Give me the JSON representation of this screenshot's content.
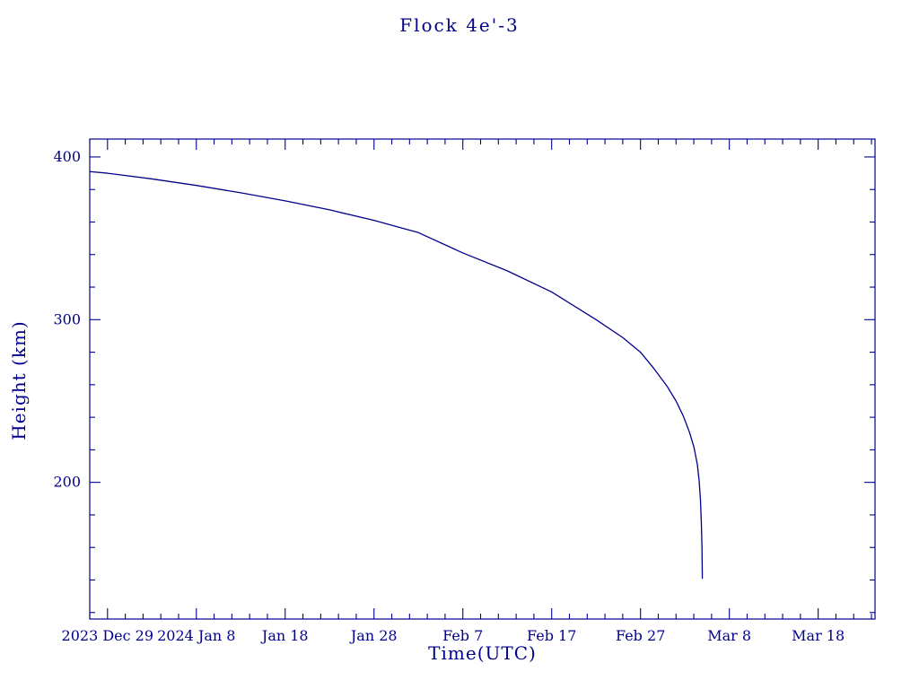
{
  "colors": {
    "ink": "#00008b",
    "background": "#ffffff"
  },
  "chart_data": {
    "type": "line",
    "title": "Flock 4e'-3",
    "xlabel": "Time(UTC)",
    "ylabel": "Height (km)",
    "x_unit": "days since 2023 Dec 29",
    "xlim": [
      -2,
      86.4
    ],
    "ylim": [
      116,
      411
    ],
    "grid": false,
    "legend": "none",
    "x_major_ticks": [
      0,
      10,
      20,
      30,
      40,
      50,
      60,
      70,
      80
    ],
    "x_tick_labels": [
      "2023 Dec 29",
      "2024 Jan 8",
      "Jan 18",
      "Jan 28",
      "Feb 7",
      "Feb 17",
      "Feb 27",
      "Mar 8",
      "Mar 18"
    ],
    "x_minor_step": 2,
    "y_major_ticks": [
      200,
      300,
      400
    ],
    "y_minor_step": 20,
    "series": [
      {
        "name": "Flock 4e'-3 orbital height",
        "points": [
          [
            -2,
            391
          ],
          [
            0,
            390
          ],
          [
            5,
            386.5
          ],
          [
            10,
            382.5
          ],
          [
            15,
            378
          ],
          [
            20,
            373
          ],
          [
            25,
            367.5
          ],
          [
            30,
            361
          ],
          [
            35,
            353.5
          ],
          [
            40,
            341
          ],
          [
            45,
            330
          ],
          [
            50,
            317
          ],
          [
            55,
            300
          ],
          [
            58,
            289
          ],
          [
            60,
            280
          ],
          [
            61.5,
            270
          ],
          [
            63,
            259
          ],
          [
            64,
            250
          ],
          [
            64.8,
            241
          ],
          [
            65.5,
            231
          ],
          [
            66,
            222
          ],
          [
            66.4,
            211
          ],
          [
            66.6,
            201
          ],
          [
            66.75,
            189
          ],
          [
            66.85,
            175
          ],
          [
            66.92,
            160
          ],
          [
            66.95,
            146
          ],
          [
            66.96,
            141
          ]
        ]
      }
    ]
  }
}
